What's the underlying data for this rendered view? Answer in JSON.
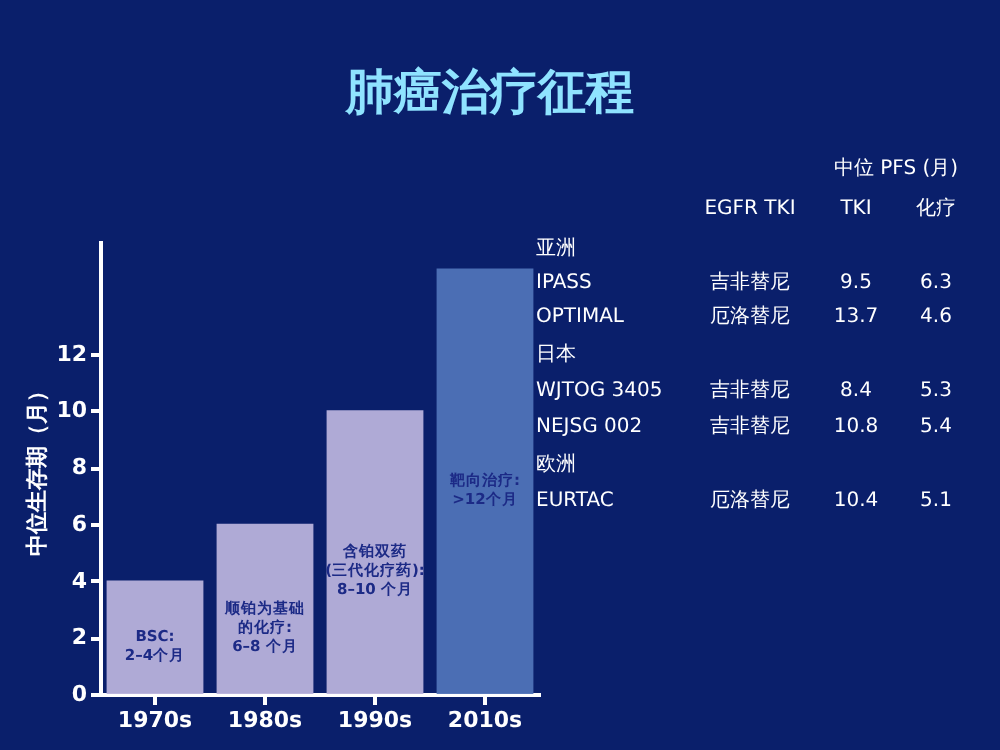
{
  "chart_data": {
    "type": "bar",
    "title": "肺癌治疗征程",
    "categories": [
      "1970s",
      "1980s",
      "1990s",
      "2010s"
    ],
    "values": [
      4,
      6,
      10,
      15
    ],
    "colors": [
      "#b8b2dc",
      "#b8b2dc",
      "#b8b2dc",
      "#4f73b8"
    ],
    "value_labels": [
      "BSC:\n2–4个月",
      "顺铂为基础的化疗:\n6–8 个月",
      "含铂双药\n(三代化疗药):\n8–10 个月",
      "靶向治疗:\n>12个月"
    ],
    "ylabel": "中位生存期（月）",
    "ylim": [
      0,
      16
    ],
    "yticks": [
      0,
      2,
      4,
      6,
      8,
      10,
      12
    ],
    "grid": false,
    "annotations": [
      "中位 PFS (月)",
      "EGFR TKI",
      "TKI",
      "化疗",
      "亚洲",
      "IPASS",
      "吉非替尼",
      "9.5",
      "6.3",
      "OPTIMAL",
      "厄洛替尼",
      "13.7",
      "4.6",
      "日本",
      "WJTOG 3405",
      "吉非替尼",
      "8.4",
      "5.3",
      "NEJSG  002",
      "吉非替尼",
      "10.8",
      "5.4",
      "欧洲",
      "EURTAC",
      "厄洛替尼",
      "10.4",
      "5.1"
    ]
  }
}
